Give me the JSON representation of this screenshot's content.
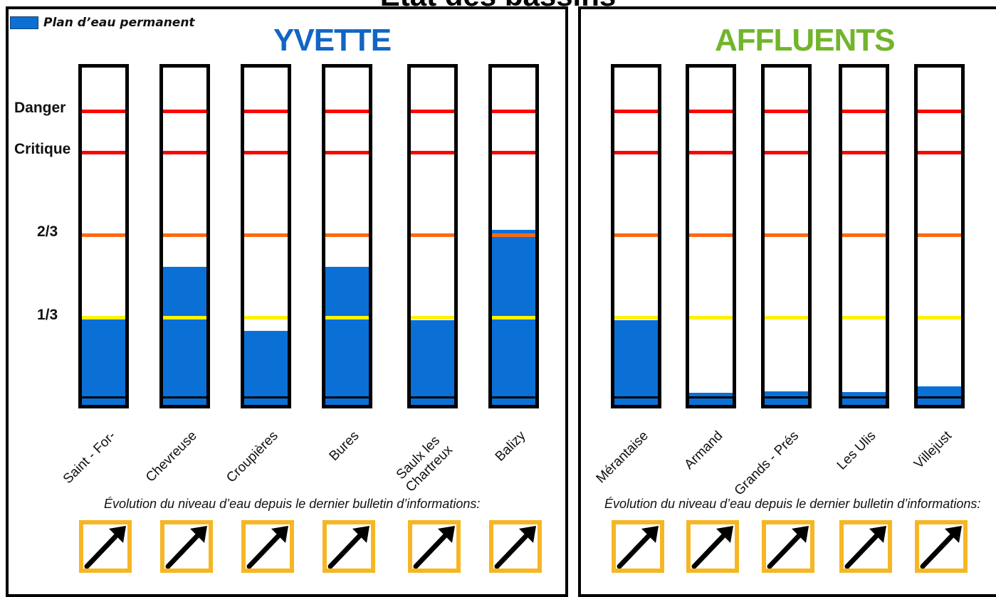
{
  "main_title": "État des bassins",
  "legend": {
    "label": "Plan d’eau permanent"
  },
  "colors": {
    "water_blue": "#0a70d6",
    "yvette_border": "#1563b8",
    "affluents_border": "#6eb52c",
    "danger_red": "#ff0000",
    "two_thirds_orange": "#ff6a10",
    "one_third_yellow": "#fff200",
    "arrow_frame": "#f6b624"
  },
  "levels": [
    "Danger",
    "Critique",
    "2/3",
    "1/3"
  ],
  "sections": [
    {
      "title": "YVETTE",
      "basins": [
        {
          "name": "Saint - For-",
          "fill_fraction": 0.26,
          "trend_icon": "arrow-up-right"
        },
        {
          "name": "Chevreuse",
          "fill_fraction": 0.41,
          "trend_icon": "arrow-up-right"
        },
        {
          "name": "Croupières",
          "fill_fraction": 0.22,
          "trend_icon": "arrow-up-right"
        },
        {
          "name": "Bures",
          "fill_fraction": 0.41,
          "trend_icon": "arrow-up-right"
        },
        {
          "name": "Saulx les Chartreux",
          "fill_fraction": 0.25,
          "trend_icon": "arrow-up-right"
        },
        {
          "name": "Balizy",
          "fill_fraction": 0.52,
          "trend_icon": "arrow-up-right"
        }
      ],
      "evolution_text": "Évolution du niveau d’eau depuis le dernier bulletin d’informations:"
    },
    {
      "title": "AFFLUENTS",
      "basins": [
        {
          "name": "Mérantaise",
          "fill_fraction": 0.25,
          "trend_icon": "arrow-up-right"
        },
        {
          "name": "Armand",
          "fill_fraction": 0.035,
          "trend_icon": "arrow-up-right"
        },
        {
          "name": "Grands - Prés",
          "fill_fraction": 0.04,
          "trend_icon": "arrow-up-right"
        },
        {
          "name": "Les Ulis",
          "fill_fraction": 0.037,
          "trend_icon": "arrow-up-right"
        },
        {
          "name": "Villejust",
          "fill_fraction": 0.055,
          "trend_icon": "arrow-up-right"
        }
      ],
      "evolution_text": "Évolution du niveau d’eau depuis le dernier bulletin d’informations:"
    }
  ]
}
